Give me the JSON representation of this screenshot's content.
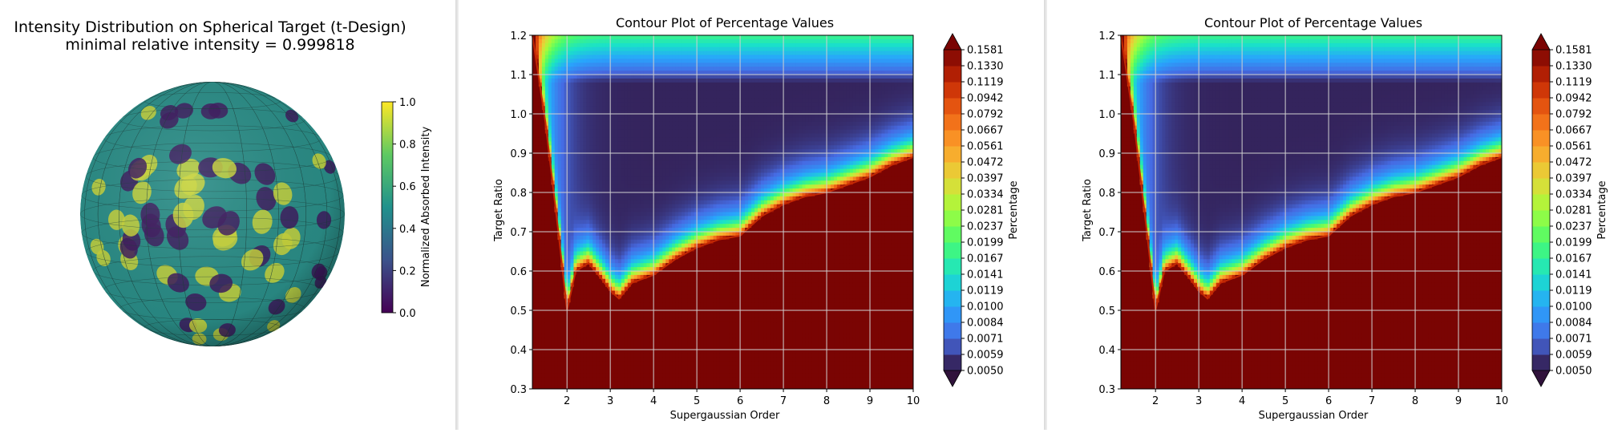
{
  "chart_data": [
    {
      "type": "surface",
      "title": "Intensity Distribution on Spherical Target (t-Design)",
      "subtitle": "minimal relative intensity = 0.999818",
      "colorbar": {
        "label": "Normalized Absorbed Intensity",
        "ticks": [
          "0.0",
          "0.2",
          "0.4",
          "0.6",
          "0.8",
          "1.0"
        ],
        "range": [
          0.0,
          1.0
        ],
        "colormap": "viridis"
      }
    },
    {
      "type": "contour",
      "title": "Contour Plot of Percentage Values",
      "xlabel": "Supergaussian Order",
      "ylabel": "Target Ratio",
      "xlim": [
        1.2,
        10
      ],
      "ylim": [
        0.3,
        1.2
      ],
      "x_ticks": [
        "2",
        "3",
        "4",
        "5",
        "6",
        "7",
        "8",
        "9",
        "10"
      ],
      "y_ticks": [
        "0.3",
        "0.4",
        "0.5",
        "0.6",
        "0.7",
        "0.8",
        "0.9",
        "1.0",
        "1.1",
        "1.2"
      ],
      "grid": true,
      "colormap": "turbo",
      "colorbar": {
        "label": "Percentage",
        "levels": [
          "0.0050",
          "0.0059",
          "0.0071",
          "0.0084",
          "0.0100",
          "0.0119",
          "0.0141",
          "0.0167",
          "0.0199",
          "0.0237",
          "0.0281",
          "0.0334",
          "0.0397",
          "0.0472",
          "0.0561",
          "0.0667",
          "0.0792",
          "0.0942",
          "0.1119",
          "0.1330",
          "0.1581"
        ],
        "extend": "both"
      },
      "boundary_curve": {
        "x": [
          1.2,
          1.5,
          1.8,
          2.0,
          2.2,
          2.5,
          2.8,
          3.0,
          3.2,
          3.5,
          4.0,
          4.5,
          5.0,
          5.5,
          6.0,
          6.5,
          7.0,
          7.5,
          8.0,
          8.5,
          9.0,
          9.5,
          10.0
        ],
        "y": [
          1.2,
          0.98,
          0.7,
          0.5,
          0.6,
          0.62,
          0.58,
          0.55,
          0.53,
          0.57,
          0.59,
          0.63,
          0.66,
          0.68,
          0.69,
          0.74,
          0.77,
          0.79,
          0.8,
          0.82,
          0.84,
          0.87,
          0.89
        ]
      }
    },
    {
      "type": "contour",
      "title": "Contour Plot of Percentage Values",
      "xlabel": "Supergaussian Order",
      "ylabel": "Target Ratio",
      "xlim": [
        1.2,
        10
      ],
      "ylim": [
        0.3,
        1.2
      ],
      "x_ticks": [
        "2",
        "3",
        "4",
        "5",
        "6",
        "7",
        "8",
        "9",
        "10"
      ],
      "y_ticks": [
        "0.3",
        "0.4",
        "0.5",
        "0.6",
        "0.7",
        "0.8",
        "0.9",
        "1.0",
        "1.1",
        "1.2"
      ],
      "grid": true,
      "colormap": "turbo",
      "colorbar": {
        "label": "Percentage",
        "levels": [
          "0.0050",
          "0.0059",
          "0.0071",
          "0.0084",
          "0.0100",
          "0.0119",
          "0.0141",
          "0.0167",
          "0.0199",
          "0.0237",
          "0.0281",
          "0.0334",
          "0.0397",
          "0.0472",
          "0.0561",
          "0.0667",
          "0.0792",
          "0.0942",
          "0.1119",
          "0.1330",
          "0.1581"
        ],
        "extend": "both"
      },
      "boundary_curve": {
        "x": [
          1.2,
          1.5,
          1.8,
          2.0,
          2.2,
          2.5,
          2.8,
          3.0,
          3.2,
          3.5,
          4.0,
          4.5,
          5.0,
          5.5,
          6.0,
          6.5,
          7.0,
          7.5,
          8.0,
          8.5,
          9.0,
          9.5,
          10.0
        ],
        "y": [
          1.2,
          0.98,
          0.7,
          0.5,
          0.6,
          0.62,
          0.58,
          0.55,
          0.53,
          0.57,
          0.59,
          0.63,
          0.66,
          0.68,
          0.69,
          0.74,
          0.77,
          0.79,
          0.8,
          0.82,
          0.84,
          0.87,
          0.89
        ]
      }
    }
  ]
}
